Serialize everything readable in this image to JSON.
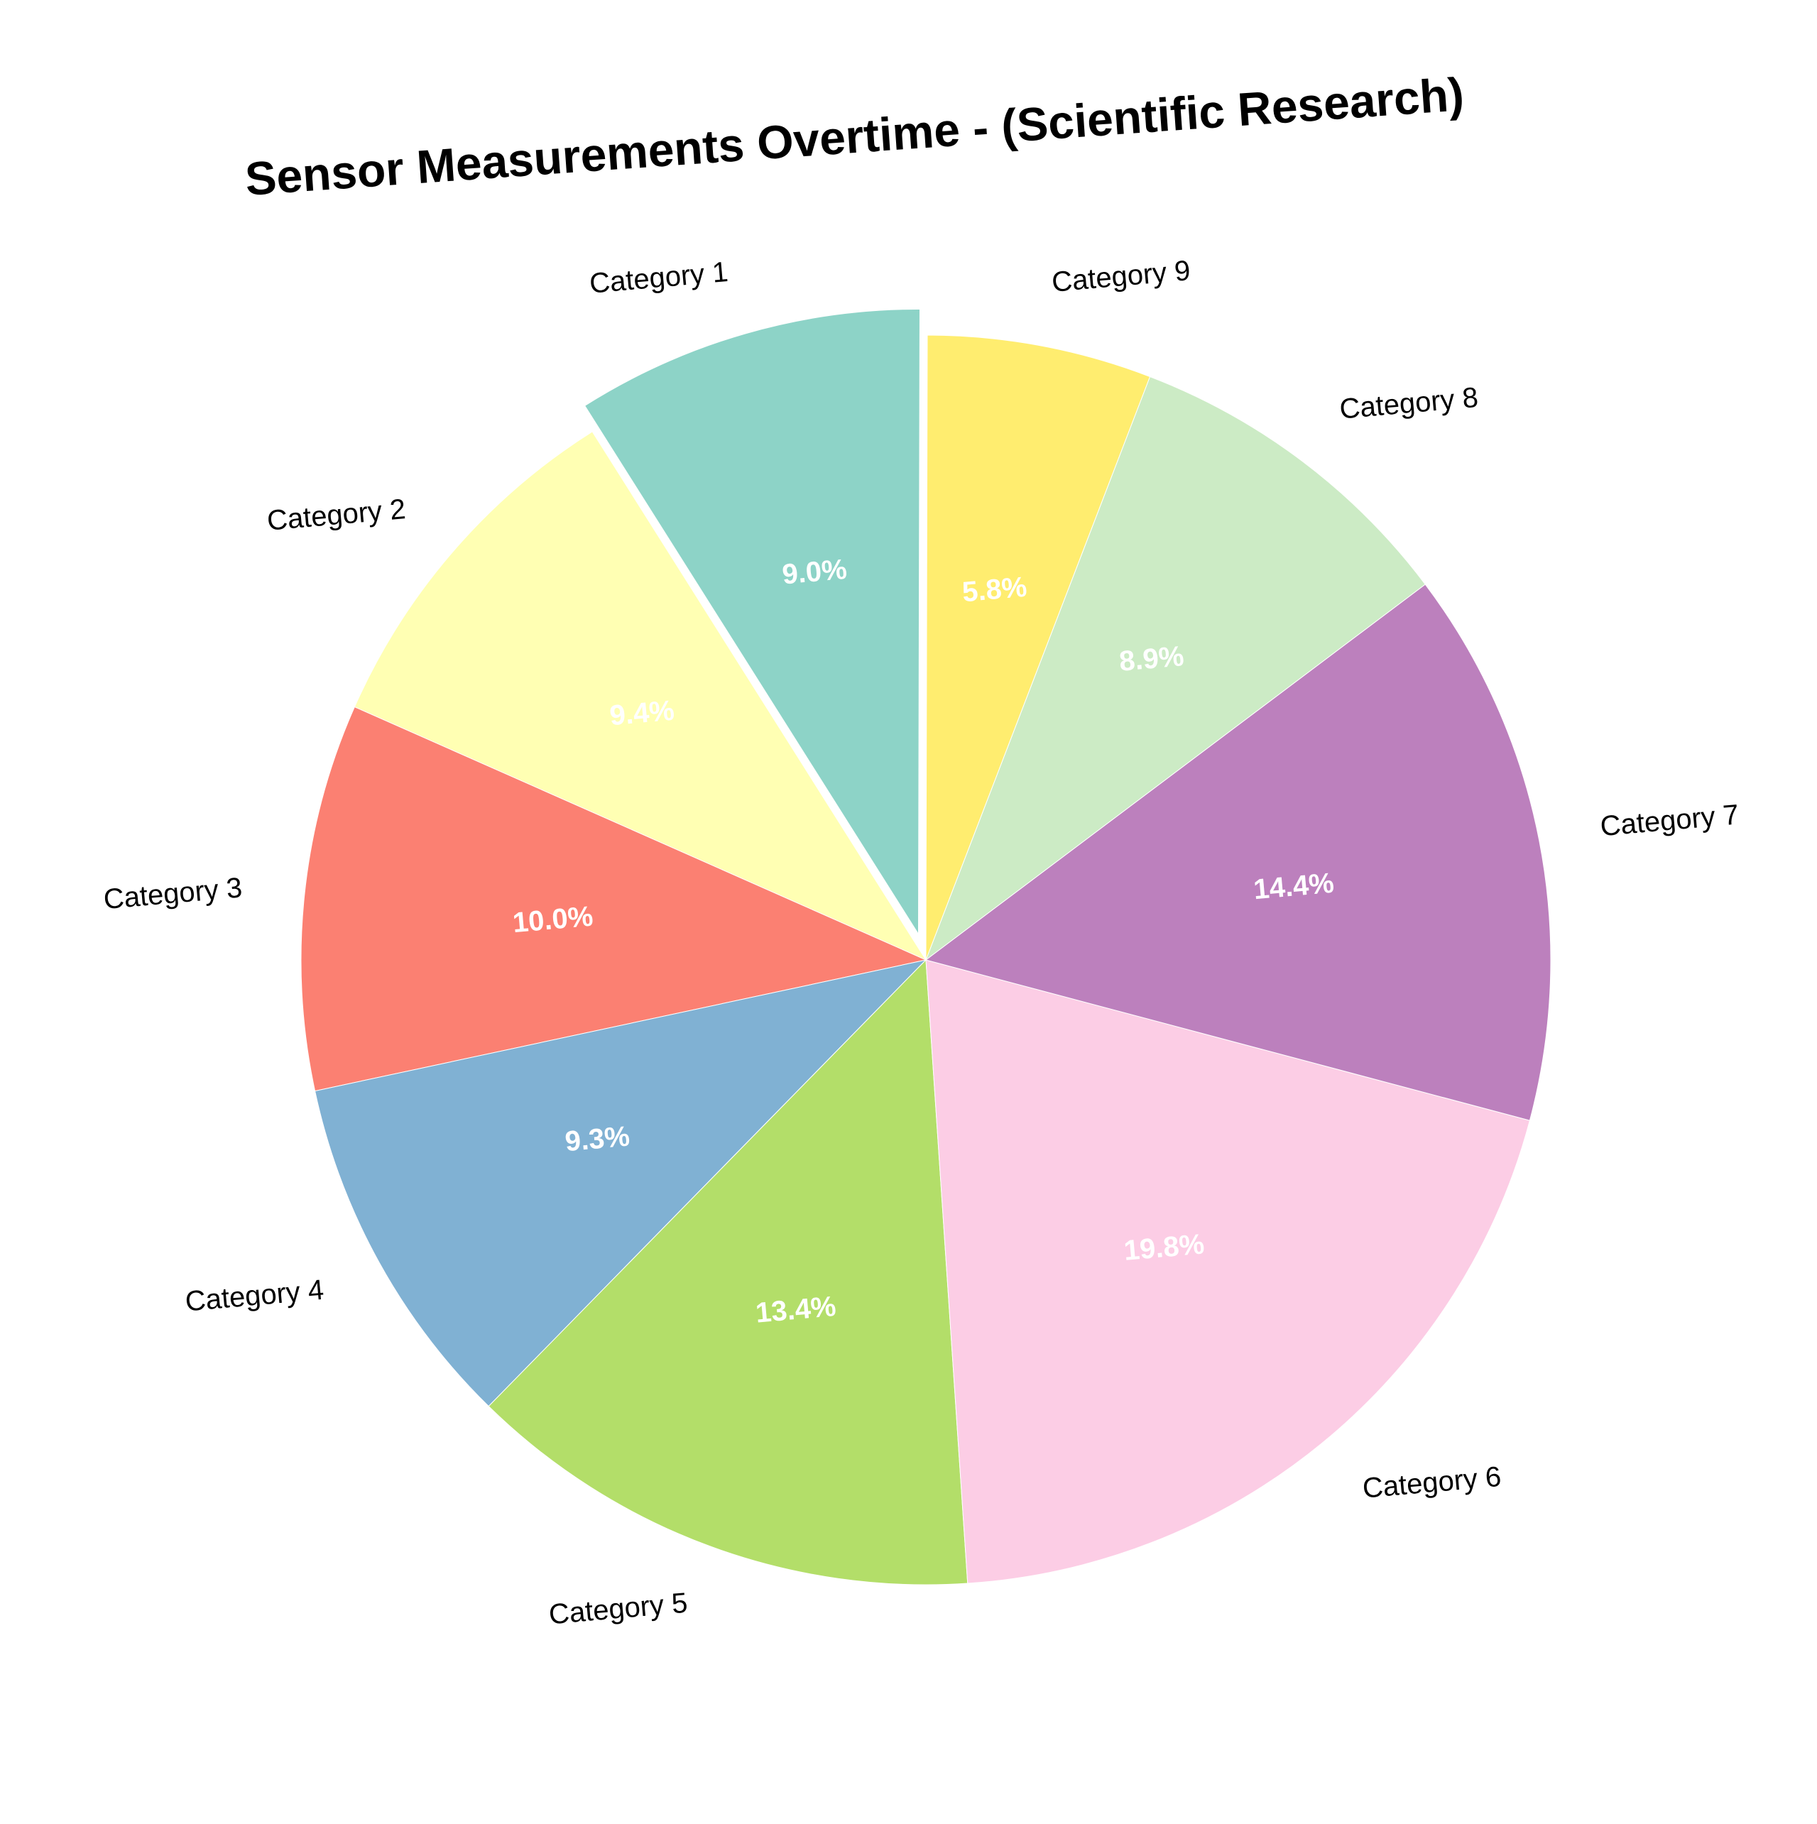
{
  "chart_data": {
    "type": "pie",
    "title": "Sensor Measurements Overtime - (Scientific Research)",
    "categories": [
      "Category 1",
      "Category 2",
      "Category 3",
      "Category 4",
      "Category 5",
      "Category 6",
      "Category 7",
      "Category 8",
      "Category 9"
    ],
    "values": [
      9.0,
      9.4,
      10.0,
      9.3,
      13.4,
      19.8,
      14.4,
      8.9,
      5.8
    ],
    "value_labels": [
      "9.0%",
      "9.4%",
      "10.0%",
      "9.3%",
      "13.4%",
      "19.8%",
      "14.4%",
      "8.9%",
      "5.8%"
    ],
    "colors": [
      "#8dd3c7",
      "#ffffb3",
      "#fb8072",
      "#80b1d3",
      "#b3de69",
      "#fccde5",
      "#bc80bd",
      "#ccebc5",
      "#ffed6f"
    ],
    "exploded": "Category 1",
    "legend": "none"
  }
}
